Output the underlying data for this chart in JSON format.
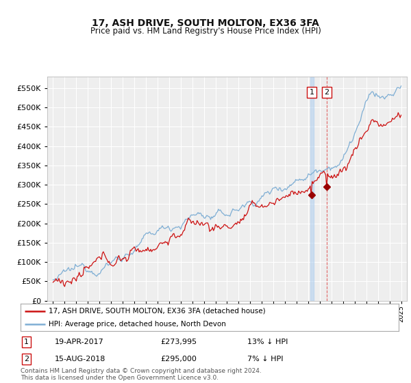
{
  "title": "17, ASH DRIVE, SOUTH MOLTON, EX36 3FA",
  "subtitle": "Price paid vs. HM Land Registry's House Price Index (HPI)",
  "legend_line1": "17, ASH DRIVE, SOUTH MOLTON, EX36 3FA (detached house)",
  "legend_line2": "HPI: Average price, detached house, North Devon",
  "footer": "Contains HM Land Registry data © Crown copyright and database right 2024.\nThis data is licensed under the Open Government Licence v3.0.",
  "sale1_date": "19-APR-2017",
  "sale1_price": "£273,995",
  "sale1_note": "13% ↓ HPI",
  "sale2_date": "15-AUG-2018",
  "sale2_price": "£295,000",
  "sale2_note": "7% ↓ HPI",
  "sale1_year": 2017.3,
  "sale1_value": 273995,
  "sale2_year": 2018.6,
  "sale2_value": 295000,
  "ylim_min": 0,
  "ylim_max": 580000,
  "hpi_color": "#7eaed4",
  "price_color": "#cc1111",
  "marker_color": "#990000",
  "background_color": "#eeeeee",
  "grid_color": "#ffffff"
}
